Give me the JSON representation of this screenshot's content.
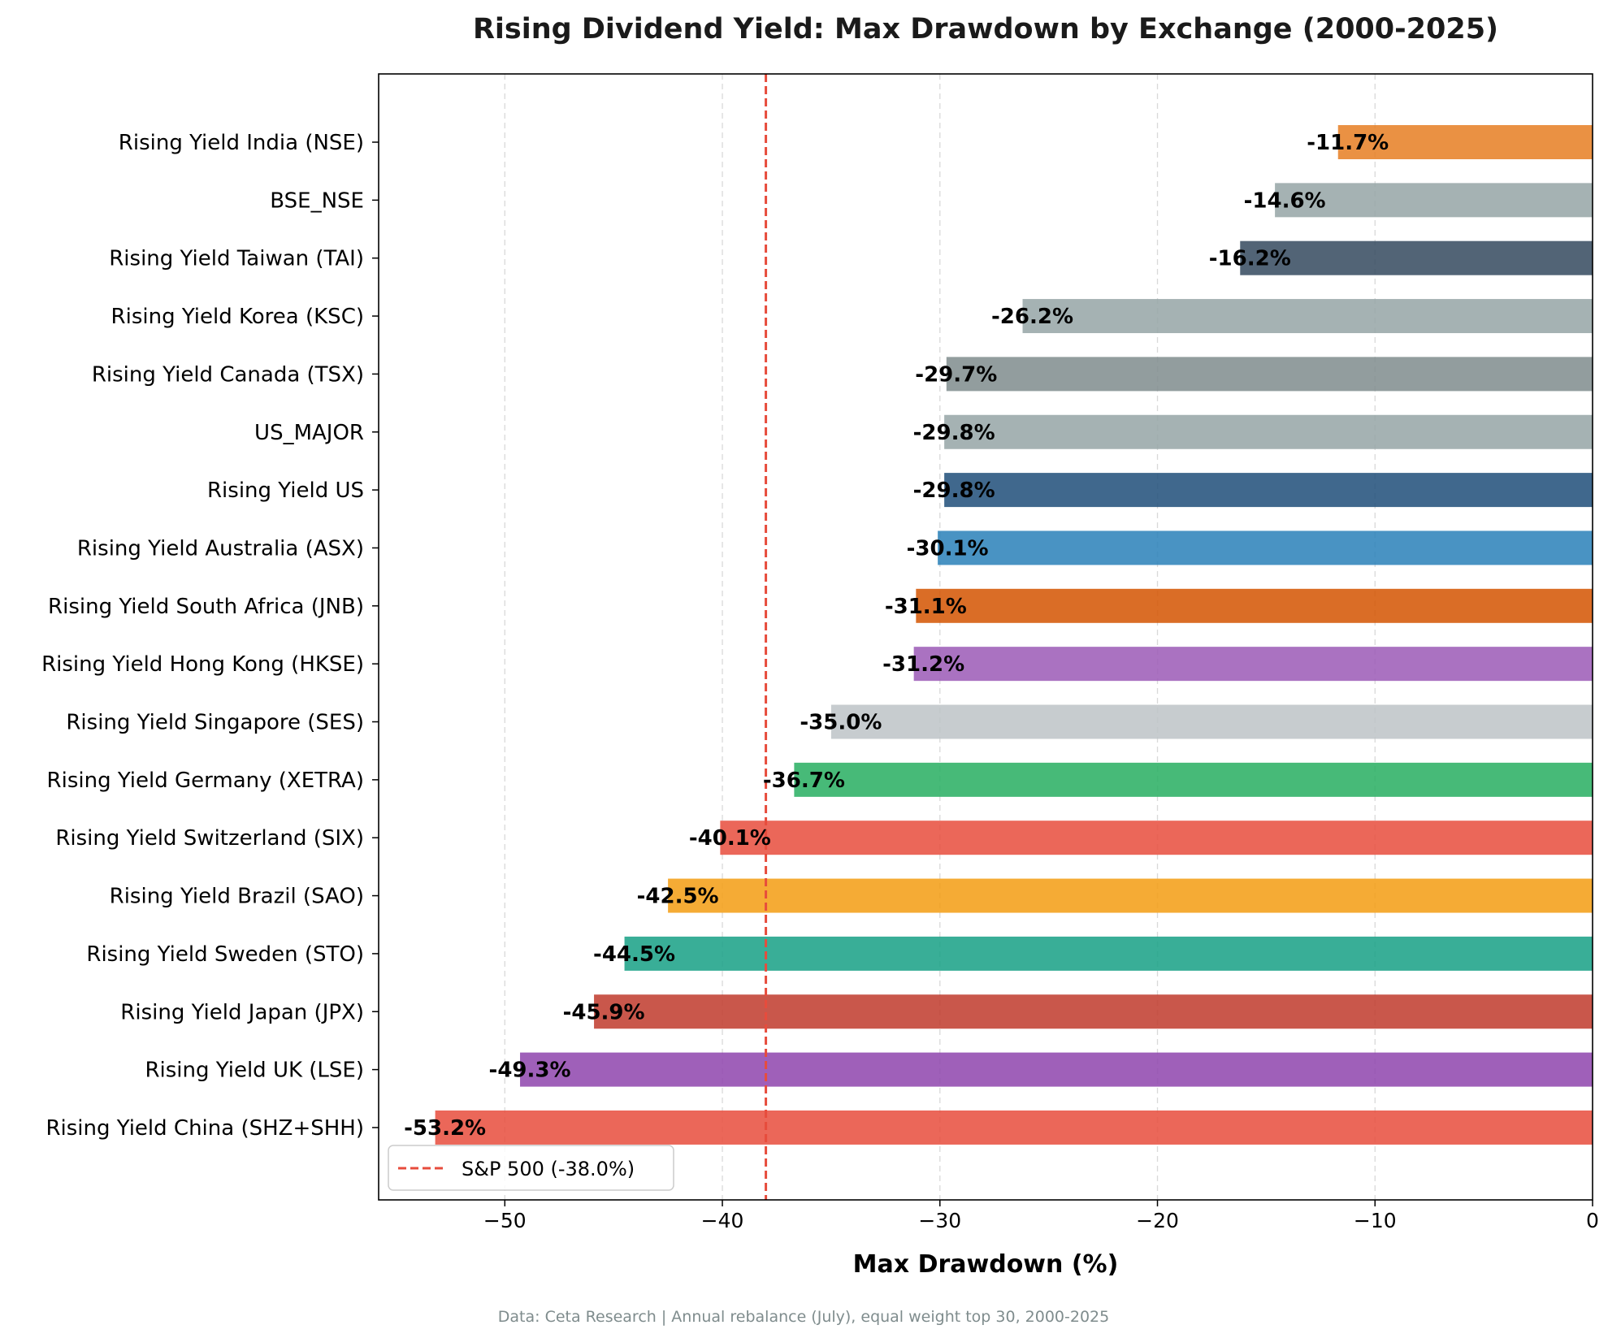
{
  "chart_data": {
    "type": "bar",
    "orientation": "horizontal",
    "title": "Rising Dividend Yield: Max Drawdown by Exchange (2000-2025)",
    "xlabel": "Max Drawdown (%)",
    "ylabel": "",
    "xlim": [
      -55.8,
      0
    ],
    "xticks": [
      {
        "value": -50,
        "label": "−50"
      },
      {
        "value": -40,
        "label": "−40"
      },
      {
        "value": -30,
        "label": "−30"
      },
      {
        "value": -20,
        "label": "−20"
      },
      {
        "value": -10,
        "label": "−10"
      },
      {
        "value": 0,
        "label": "0"
      }
    ],
    "grid": "x-dashed",
    "bars": [
      {
        "category": "Rising Yield India (NSE)",
        "value": -11.7,
        "label": "-11.7%",
        "color": "#e67e22"
      },
      {
        "category": "BSE_NSE",
        "value": -14.6,
        "label": "-14.6%",
        "color": "#95a5a6"
      },
      {
        "category": "Rising Yield Taiwan (TAI)",
        "value": -16.2,
        "label": "-16.2%",
        "color": "#34495e"
      },
      {
        "category": "Rising Yield Korea (KSC)",
        "value": -26.2,
        "label": "-26.2%",
        "color": "#95a5a6"
      },
      {
        "category": "Rising Yield Canada (TSX)",
        "value": -29.7,
        "label": "-29.7%",
        "color": "#7f8c8d"
      },
      {
        "category": "US_MAJOR",
        "value": -29.8,
        "label": "-29.8%",
        "color": "#95a5a6"
      },
      {
        "category": "Rising Yield US",
        "value": -29.8,
        "label": "-29.8%",
        "color": "#1f4e79"
      },
      {
        "category": "Rising Yield Australia (ASX)",
        "value": -30.1,
        "label": "-30.1%",
        "color": "#2980b9"
      },
      {
        "category": "Rising Yield South Africa (JNB)",
        "value": -31.1,
        "label": "-31.1%",
        "color": "#d35400"
      },
      {
        "category": "Rising Yield Hong Kong (HKSE)",
        "value": -31.2,
        "label": "-31.2%",
        "color": "#9b59b6"
      },
      {
        "category": "Rising Yield Singapore (SES)",
        "value": -35.0,
        "label": "-35.0%",
        "color": "#bdc3c7"
      },
      {
        "category": "Rising Yield Germany (XETRA)",
        "value": -36.7,
        "label": "-36.7%",
        "color": "#27ae60"
      },
      {
        "category": "Rising Yield Switzerland (SIX)",
        "value": -40.1,
        "label": "-40.1%",
        "color": "#e74c3c"
      },
      {
        "category": "Rising Yield Brazil (SAO)",
        "value": -42.5,
        "label": "-42.5%",
        "color": "#f39c12"
      },
      {
        "category": "Rising Yield Sweden (STO)",
        "value": -44.5,
        "label": "-44.5%",
        "color": "#16a085"
      },
      {
        "category": "Rising Yield Japan (JPX)",
        "value": -45.9,
        "label": "-45.9%",
        "color": "#c0392b"
      },
      {
        "category": "Rising Yield UK (LSE)",
        "value": -49.3,
        "label": "-49.3%",
        "color": "#8e44ad"
      },
      {
        "category": "Rising Yield China (SHZ+SHH)",
        "value": -53.2,
        "label": "-53.2%",
        "color": "#e74c3c"
      }
    ],
    "reference_line": {
      "value": -38.0,
      "label": "S&P 500 (-38.0%)",
      "color": "#e74c3c",
      "style": "dashed"
    },
    "legend": {
      "placement": "lower-left"
    },
    "footer": "Data: Ceta Research | Annual rebalance (July), equal weight top 30, 2000-2025"
  }
}
